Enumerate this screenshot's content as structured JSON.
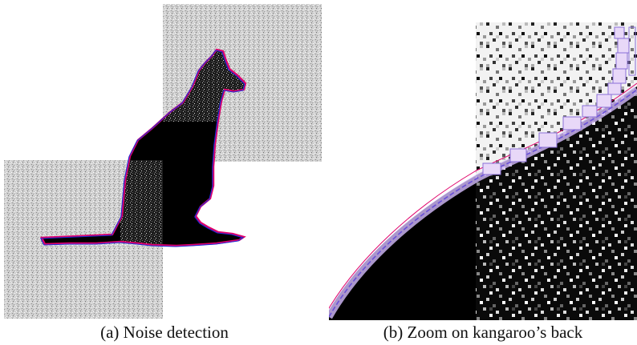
{
  "figure": {
    "panels": [
      {
        "id": "a",
        "caption": "(a) Noise detection"
      },
      {
        "id": "b",
        "caption": "(b) Zoom on kangaroo’s back"
      }
    ],
    "colors": {
      "background": "#ffffff",
      "noise_light": "#d6d6d6",
      "noise_dark": "#3a3a3a",
      "silhouette": "#000000",
      "contour_outer": "#e0006a",
      "contour_inner": "#1a2bd8",
      "zoom_box_fill": "#e8d8f8",
      "zoom_box_stroke": "#8a6fd8"
    }
  }
}
